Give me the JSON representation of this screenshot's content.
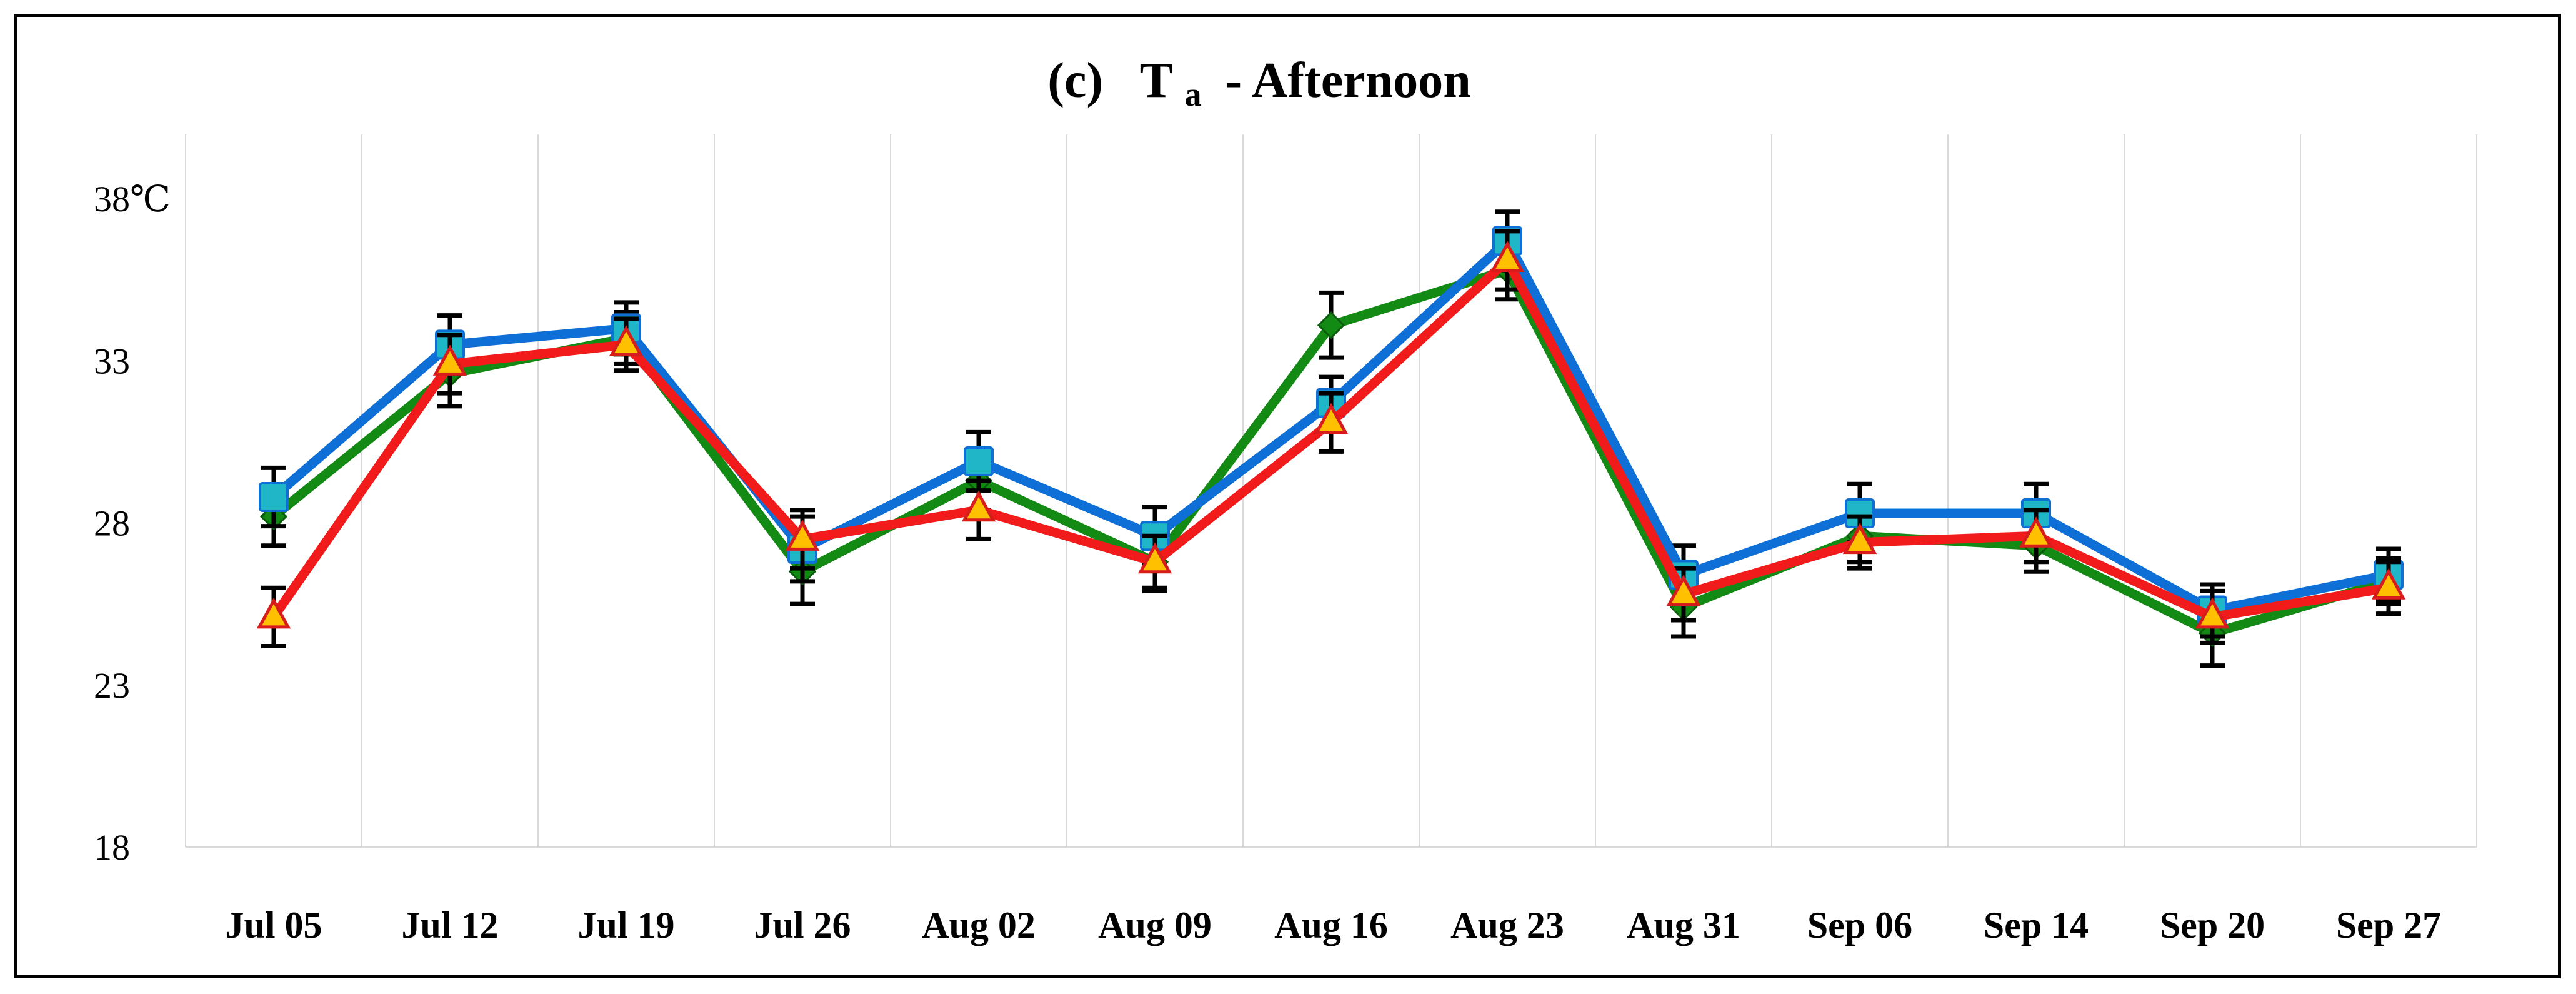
{
  "chart_data": {
    "type": "line",
    "title": {
      "prefix": "(c)",
      "variable": "T",
      "subscript": "a",
      "suffix": "- Afternoon"
    },
    "xlabel": "",
    "ylabel": "",
    "categories": [
      "Jul 05",
      "Jul 12",
      "Jul 19",
      "Jul 26",
      "Aug 02",
      "Aug 09",
      "Aug 16",
      "Aug 23",
      "Aug 31",
      "Sep 06",
      "Sep 14",
      "Sep 20",
      "Sep 27"
    ],
    "yticks": [
      18,
      23,
      28,
      33,
      38
    ],
    "ytick_labels": [
      "18",
      "23",
      "28",
      "33",
      "38℃"
    ],
    "ylim": [
      18,
      40
    ],
    "grid": "vertical",
    "series": [
      {
        "name": "green-diamond",
        "color": "#138a14",
        "marker": "diamond",
        "marker_color": "#138a14",
        "values": [
          28.2,
          32.6,
          33.7,
          26.5,
          29.3,
          26.8,
          34.1,
          35.8,
          25.4,
          27.6,
          27.3,
          24.6,
          26.2
        ],
        "error": [
          0.9,
          1.0,
          0.8,
          1.0,
          0.9,
          0.9,
          1.0,
          0.9,
          0.9,
          0.8,
          0.8,
          1.0,
          0.7
        ]
      },
      {
        "name": "blue-square",
        "color": "#0e6fd7",
        "marker": "square",
        "marker_color": "#1fb7c8",
        "values": [
          28.8,
          33.5,
          34.0,
          27.2,
          29.9,
          27.6,
          31.7,
          36.7,
          26.4,
          28.3,
          28.3,
          25.3,
          26.4
        ],
        "error": [
          0.9,
          0.9,
          0.8,
          1.0,
          0.9,
          0.9,
          0.8,
          0.9,
          0.9,
          0.9,
          0.9,
          0.8,
          0.8
        ]
      },
      {
        "name": "red-triangle",
        "color": "#f21b1b",
        "marker": "triangle",
        "marker_color": "#ffc000",
        "values": [
          25.1,
          32.9,
          33.5,
          27.5,
          28.4,
          26.8,
          31.1,
          36.1,
          25.8,
          27.4,
          27.6,
          25.1,
          26.0
        ],
        "error": [
          0.9,
          0.9,
          0.8,
          0.9,
          0.9,
          0.8,
          0.9,
          0.9,
          0.8,
          0.8,
          0.8,
          0.8,
          0.8
        ]
      }
    ]
  }
}
